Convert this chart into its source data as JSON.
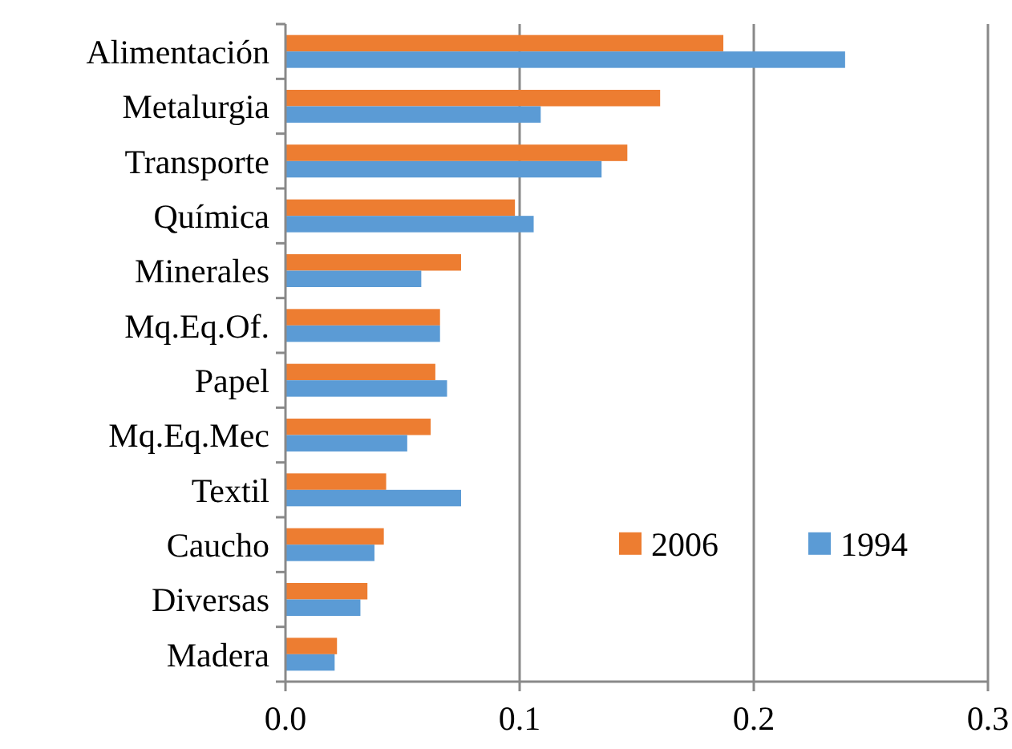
{
  "chart_data": {
    "type": "bar",
    "orientation": "horizontal",
    "categories": [
      "Alimentación",
      "Metalurgia",
      "Transporte",
      "Química",
      "Minerales",
      "Mq.Eq.Of.",
      "Papel",
      "Mq.Eq.Mec",
      "Textil",
      "Caucho",
      "Diversas",
      "Madera"
    ],
    "series": [
      {
        "name": "2006",
        "color": "#ed7d31",
        "values": [
          0.187,
          0.16,
          0.146,
          0.098,
          0.075,
          0.066,
          0.064,
          0.062,
          0.043,
          0.042,
          0.035,
          0.022
        ]
      },
      {
        "name": "1994",
        "color": "#5b9bd5",
        "values": [
          0.239,
          0.109,
          0.135,
          0.106,
          0.058,
          0.066,
          0.069,
          0.052,
          0.075,
          0.038,
          0.032,
          0.021
        ]
      }
    ],
    "xlim": [
      0,
      0.3
    ],
    "xticks": [
      {
        "value": 0,
        "label": "0.0"
      },
      {
        "value": 0.1,
        "label": "0.1"
      },
      {
        "value": 0.2,
        "label": "0.2"
      },
      {
        "value": 0.3,
        "label": "0.3"
      }
    ],
    "grid": "x",
    "legend": "right"
  }
}
